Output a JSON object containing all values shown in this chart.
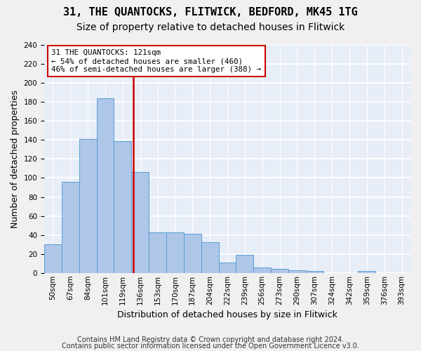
{
  "title1": "31, THE QUANTOCKS, FLITWICK, BEDFORD, MK45 1TG",
  "title2": "Size of property relative to detached houses in Flitwick",
  "xlabel": "Distribution of detached houses by size in Flitwick",
  "ylabel": "Number of detached properties",
  "bar_values": [
    30,
    96,
    141,
    184,
    139,
    106,
    43,
    43,
    41,
    32,
    11,
    19,
    6,
    4,
    3,
    2,
    0,
    0,
    2,
    0,
    0
  ],
  "bar_labels": [
    "50sqm",
    "67sqm",
    "84sqm",
    "101sqm",
    "119sqm",
    "136sqm",
    "153sqm",
    "170sqm",
    "187sqm",
    "204sqm",
    "222sqm",
    "239sqm",
    "256sqm",
    "273sqm",
    "290sqm",
    "307sqm",
    "324sqm",
    "342sqm",
    "359sqm",
    "376sqm",
    "393sqm"
  ],
  "bar_color": "#aec6e8",
  "bar_edge_color": "#5a9fd4",
  "background_color": "#e8eef8",
  "grid_color": "#ffffff",
  "vline_color": "#cc0000",
  "vline_x": 4.62,
  "annotation_text": "31 THE QUANTOCKS: 121sqm\n← 54% of detached houses are smaller (460)\n46% of semi-detached houses are larger (388) →",
  "annotation_box_color": "#ffffff",
  "annotation_box_edge": "#cc0000",
  "footnote1": "Contains HM Land Registry data © Crown copyright and database right 2024.",
  "footnote2": "Contains public sector information licensed under the Open Government Licence v3.0.",
  "ylim": [
    0,
    240
  ],
  "yticks": [
    0,
    20,
    40,
    60,
    80,
    100,
    120,
    140,
    160,
    180,
    200,
    220,
    240
  ],
  "title1_fontsize": 11,
  "title2_fontsize": 10,
  "xlabel_fontsize": 9,
  "ylabel_fontsize": 9,
  "tick_fontsize": 7.5,
  "footnote_fontsize": 7.0
}
